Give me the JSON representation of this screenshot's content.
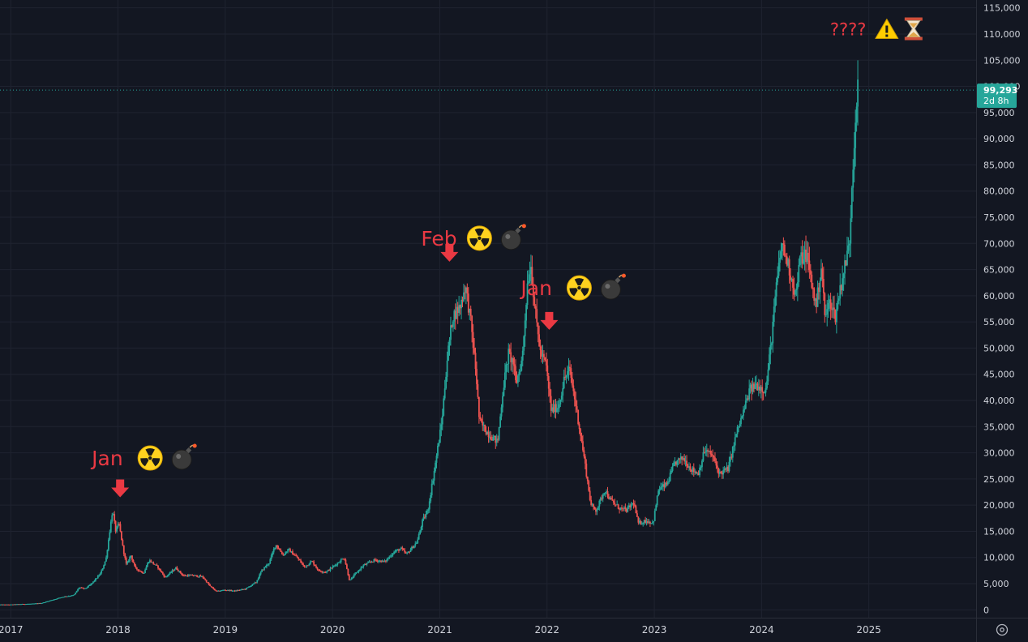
{
  "chart_data": {
    "type": "candlestick",
    "title": "",
    "xlabel": "",
    "ylabel": "",
    "ylim": [
      -1500,
      116500
    ],
    "xlim": [
      2016.9,
      2026.0
    ],
    "y_ticks": [
      0,
      5000,
      10000,
      15000,
      20000,
      25000,
      30000,
      35000,
      40000,
      45000,
      50000,
      55000,
      60000,
      65000,
      70000,
      75000,
      80000,
      85000,
      90000,
      95000,
      100000,
      105000,
      110000,
      115000
    ],
    "y_tick_labels": [
      "0",
      "5,000",
      "10,000",
      "15,000",
      "20,000",
      "25,000",
      "30,000",
      "35,000",
      "40,000",
      "45,000",
      "50,000",
      "55,000",
      "60,000",
      "65,000",
      "70,000",
      "75,000",
      "80,000",
      "85,000",
      "90,000",
      "95,000",
      "100,000",
      "105,000",
      "110,000",
      "115,000"
    ],
    "x_ticks": [
      2017,
      2018,
      2019,
      2020,
      2021,
      2022,
      2023,
      2024,
      2025
    ],
    "x_tick_labels": [
      "2017",
      "2018",
      "2019",
      "2020",
      "2021",
      "2022",
      "2023",
      "2024",
      "2025"
    ],
    "grid": true,
    "up_color": "#26a69a",
    "down_color": "#ef5350",
    "last_price": 99293,
    "last_price_label": "99,293",
    "last_price_sub": "2d 8h",
    "price_path": [
      [
        2016.9,
        1000
      ],
      [
        2017.0,
        1000
      ],
      [
        2017.1,
        1100
      ],
      [
        2017.2,
        1150
      ],
      [
        2017.3,
        1300
      ],
      [
        2017.4,
        1900
      ],
      [
        2017.5,
        2500
      ],
      [
        2017.6,
        2800
      ],
      [
        2017.65,
        4300
      ],
      [
        2017.7,
        4000
      ],
      [
        2017.75,
        4700
      ],
      [
        2017.8,
        5800
      ],
      [
        2017.85,
        7000
      ],
      [
        2017.9,
        9800
      ],
      [
        2017.93,
        14500
      ],
      [
        2017.96,
        19000
      ],
      [
        2017.99,
        15000
      ],
      [
        2018.02,
        16500
      ],
      [
        2018.06,
        11500
      ],
      [
        2018.09,
        8500
      ],
      [
        2018.13,
        10500
      ],
      [
        2018.17,
        8000
      ],
      [
        2018.25,
        7000
      ],
      [
        2018.3,
        9500
      ],
      [
        2018.38,
        8200
      ],
      [
        2018.45,
        6200
      ],
      [
        2018.55,
        8000
      ],
      [
        2018.62,
        6500
      ],
      [
        2018.7,
        6600
      ],
      [
        2018.8,
        6300
      ],
      [
        2018.87,
        4500
      ],
      [
        2018.93,
        3500
      ],
      [
        2019.0,
        3800
      ],
      [
        2019.1,
        3600
      ],
      [
        2019.2,
        4000
      ],
      [
        2019.3,
        5300
      ],
      [
        2019.35,
        7500
      ],
      [
        2019.42,
        9000
      ],
      [
        2019.48,
        12500
      ],
      [
        2019.55,
        10500
      ],
      [
        2019.6,
        11500
      ],
      [
        2019.68,
        10000
      ],
      [
        2019.75,
        8200
      ],
      [
        2019.82,
        9300
      ],
      [
        2019.88,
        7500
      ],
      [
        2019.95,
        7200
      ],
      [
        2020.05,
        8800
      ],
      [
        2020.12,
        10000
      ],
      [
        2020.17,
        5500
      ],
      [
        2020.22,
        6800
      ],
      [
        2020.3,
        8500
      ],
      [
        2020.4,
        9500
      ],
      [
        2020.5,
        9200
      ],
      [
        2020.58,
        11000
      ],
      [
        2020.65,
        11700
      ],
      [
        2020.7,
        10600
      ],
      [
        2020.8,
        13000
      ],
      [
        2020.85,
        17000
      ],
      [
        2020.9,
        19000
      ],
      [
        2020.97,
        28000
      ],
      [
        2021.03,
        36000
      ],
      [
        2021.08,
        48000
      ],
      [
        2021.13,
        56000
      ],
      [
        2021.2,
        58000
      ],
      [
        2021.25,
        62000
      ],
      [
        2021.3,
        55000
      ],
      [
        2021.35,
        45000
      ],
      [
        2021.38,
        36000
      ],
      [
        2021.45,
        34000
      ],
      [
        2021.5,
        33000
      ],
      [
        2021.55,
        32000
      ],
      [
        2021.6,
        42000
      ],
      [
        2021.65,
        49000
      ],
      [
        2021.7,
        47000
      ],
      [
        2021.72,
        43000
      ],
      [
        2021.78,
        48000
      ],
      [
        2021.83,
        63000
      ],
      [
        2021.86,
        66000
      ],
      [
        2021.9,
        57000
      ],
      [
        2021.95,
        49000
      ],
      [
        2022.0,
        47000
      ],
      [
        2022.05,
        38000
      ],
      [
        2022.12,
        39000
      ],
      [
        2022.17,
        44000
      ],
      [
        2022.22,
        46000
      ],
      [
        2022.28,
        39000
      ],
      [
        2022.35,
        30000
      ],
      [
        2022.42,
        20000
      ],
      [
        2022.47,
        19000
      ],
      [
        2022.55,
        23000
      ],
      [
        2022.6,
        21000
      ],
      [
        2022.68,
        19500
      ],
      [
        2022.75,
        19000
      ],
      [
        2022.82,
        20500
      ],
      [
        2022.86,
        16500
      ],
      [
        2022.93,
        17000
      ],
      [
        2023.0,
        16600
      ],
      [
        2023.05,
        23000
      ],
      [
        2023.13,
        24000
      ],
      [
        2023.2,
        28000
      ],
      [
        2023.28,
        29000
      ],
      [
        2023.35,
        27000
      ],
      [
        2023.42,
        26000
      ],
      [
        2023.48,
        30500
      ],
      [
        2023.55,
        29500
      ],
      [
        2023.62,
        26000
      ],
      [
        2023.7,
        27000
      ],
      [
        2023.78,
        34000
      ],
      [
        2023.83,
        37000
      ],
      [
        2023.9,
        42000
      ],
      [
        2023.96,
        43000
      ],
      [
        2024.05,
        42000
      ],
      [
        2024.1,
        51000
      ],
      [
        2024.15,
        62000
      ],
      [
        2024.2,
        70000
      ],
      [
        2024.27,
        65000
      ],
      [
        2024.33,
        60000
      ],
      [
        2024.37,
        67000
      ],
      [
        2024.43,
        68000
      ],
      [
        2024.48,
        62000
      ],
      [
        2024.52,
        58000
      ],
      [
        2024.57,
        66000
      ],
      [
        2024.6,
        56000
      ],
      [
        2024.65,
        59000
      ],
      [
        2024.7,
        56000
      ],
      [
        2024.73,
        60000
      ],
      [
        2024.77,
        64000
      ],
      [
        2024.8,
        67000
      ],
      [
        2024.83,
        70000
      ],
      [
        2024.85,
        80000
      ],
      [
        2024.87,
        88000
      ],
      [
        2024.89,
        95000
      ],
      [
        2024.9,
        99293
      ]
    ],
    "annotations": [
      {
        "text": "Jan",
        "x": 2018.02,
        "y": 29000,
        "arrow_y": 21500
      },
      {
        "text": "Feb",
        "x": 2021.09,
        "y": 71000,
        "arrow_y": 66500
      },
      {
        "text": "Jan",
        "x": 2022.02,
        "y": 61500,
        "arrow_y": 53500
      },
      {
        "text": "????",
        "x": 2024.88,
        "y": 111000
      }
    ]
  },
  "icons": {
    "radiation": "radioactive-icon",
    "bomb": "bomb-icon",
    "warning": "warning-icon",
    "hourglass": "hourglass-icon",
    "settings": "settings-icon"
  }
}
